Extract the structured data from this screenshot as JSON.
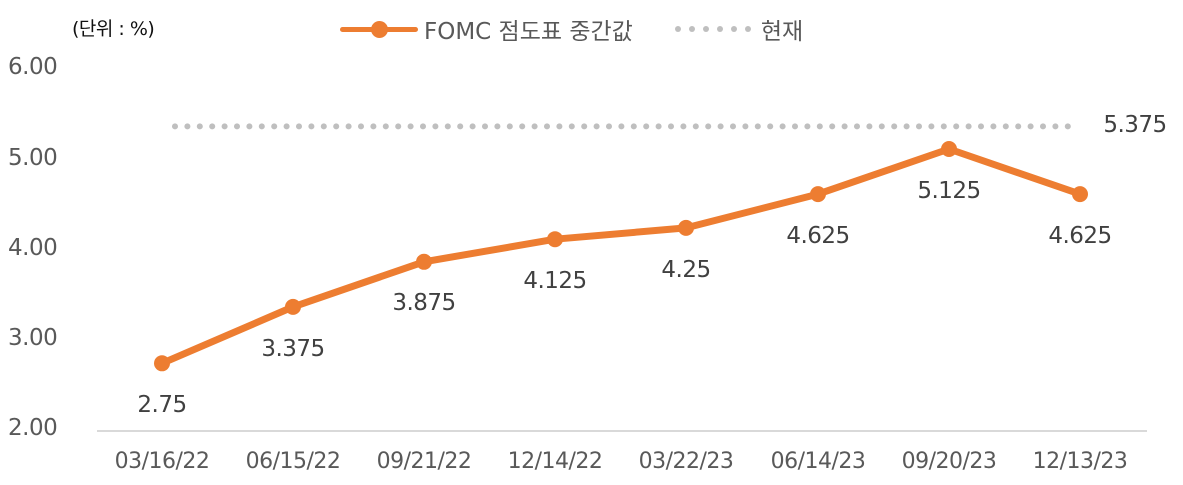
{
  "unit_label": "(단위 : %)",
  "legend": {
    "series1": "FOMC 점도표 중간값",
    "series2": "현재"
  },
  "colors": {
    "series1": "#ED7D31",
    "series2": "#BFBFBF",
    "axis": "#D9D9D9",
    "tick_text": "#595959"
  },
  "y_ticks": [
    "6.00",
    "5.00",
    "4.00",
    "3.00",
    "2.00"
  ],
  "x_ticks": [
    "03/16/22",
    "06/15/22",
    "09/21/22",
    "12/14/22",
    "03/22/23",
    "06/14/23",
    "09/20/23",
    "12/13/23"
  ],
  "data_labels": [
    "2.75",
    "3.375",
    "3.875",
    "4.125",
    "4.25",
    "4.625",
    "5.125",
    "4.625"
  ],
  "current_label": "5.375",
  "chart_data": {
    "type": "line",
    "title": "",
    "xlabel": "",
    "ylabel": "(단위 : %)",
    "categories": [
      "03/16/22",
      "06/15/22",
      "09/21/22",
      "12/14/22",
      "03/22/23",
      "06/14/23",
      "09/20/23",
      "12/13/23"
    ],
    "series": [
      {
        "name": "FOMC 점도표 중간값",
        "style": "solid line with markers",
        "color": "#ED7D31",
        "values": [
          2.75,
          3.375,
          3.875,
          4.125,
          4.25,
          4.625,
          5.125,
          4.625
        ]
      },
      {
        "name": "현재",
        "style": "dotted line",
        "color": "#BFBFBF",
        "values": [
          5.375,
          5.375,
          5.375,
          5.375,
          5.375,
          5.375,
          5.375,
          5.375
        ]
      }
    ],
    "ylim": [
      2.0,
      6.0
    ],
    "y_ticks": [
      2.0,
      3.0,
      4.0,
      5.0,
      6.0
    ],
    "grid": false,
    "legend_position": "top",
    "data_labels_shown": true
  }
}
